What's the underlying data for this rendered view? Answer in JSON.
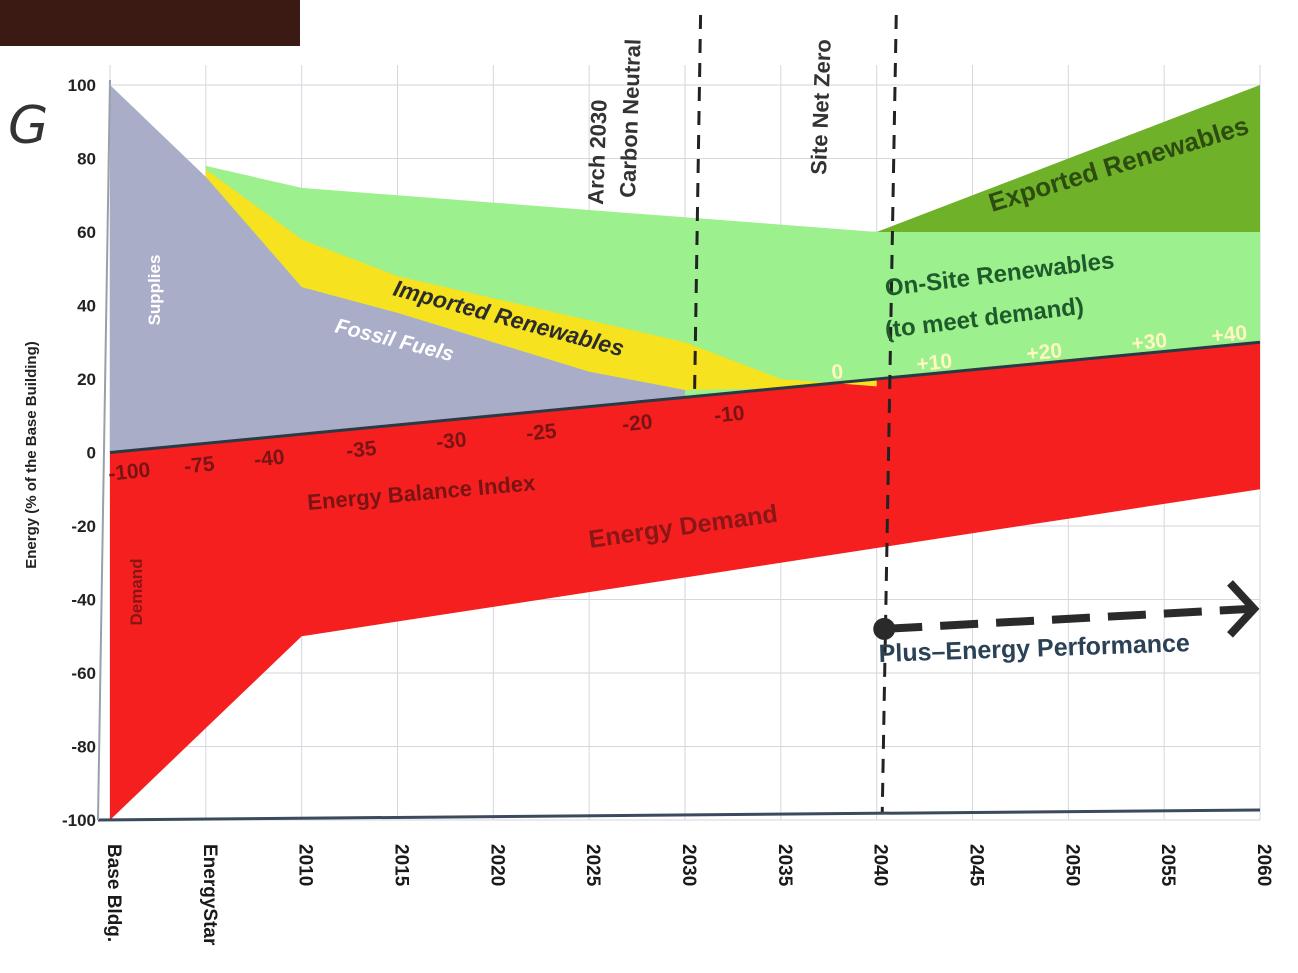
{
  "corner_glyph": "G",
  "colors": {
    "fossil": "#a9adc8",
    "imported": "#f6e21e",
    "onsite": "#9cf08e",
    "exported": "#6fb129",
    "demand": "#f51f1f",
    "balance_line": "#2a3a44",
    "grid": "#d6d6de"
  },
  "chart_data": {
    "type": "area",
    "ylabel": "Energy (% of the Base Building)",
    "ylim": [
      -100,
      100
    ],
    "yticks": [
      "100",
      "80",
      "60",
      "40",
      "20",
      "0",
      "-20",
      "-40",
      "-60",
      "-80",
      "-100"
    ],
    "x_categories": [
      "Base Bldg.",
      "EnergyStar",
      "2010",
      "2015",
      "2020",
      "2025",
      "2030",
      "2035",
      "2040",
      "2045",
      "2050",
      "2055",
      "2060"
    ],
    "series": [
      {
        "name": "Fossil Fuels",
        "values": [
          100,
          75,
          45,
          38,
          30,
          22,
          17,
          14,
          12,
          12,
          12,
          12,
          12
        ]
      },
      {
        "name": "Imported Renewables",
        "values": [
          null,
          77,
          58,
          48,
          42,
          36,
          30,
          20,
          18,
          null,
          null,
          null,
          null
        ]
      },
      {
        "name": "On-Site Renewables (to meet demand)",
        "values": [
          null,
          78,
          72,
          70,
          68,
          66,
          64,
          62,
          60,
          60,
          60,
          60,
          60
        ]
      },
      {
        "name": "Exported Renewables",
        "values": [
          null,
          null,
          null,
          null,
          null,
          null,
          null,
          null,
          60,
          70,
          80,
          90,
          100
        ]
      },
      {
        "name": "Energy Demand",
        "values": [
          -100,
          -75,
          -50,
          -46,
          -42,
          -38,
          -34,
          -30,
          -26,
          -22,
          -18,
          -14,
          -10
        ]
      }
    ],
    "energy_balance_index": {
      "label": "Energy Balance Index",
      "ticks": [
        "-100",
        "-75",
        "-40",
        "-35",
        "-30",
        "-25",
        "-20",
        "-10",
        "0",
        "+10",
        "+20",
        "+30",
        "+40"
      ]
    },
    "area_labels": {
      "supplies": "Supplies",
      "fossil": "Fossil Fuels",
      "imported": "Imported Renewables",
      "onsite_line1": "On-Site Renewables",
      "onsite_line2": "(to meet demand)",
      "exported": "Exported Renewables",
      "demand_vertical": "Demand",
      "energy_demand": "Energy Demand"
    },
    "markers": {
      "arch_line1": "Arch 2030",
      "arch_line2": "Carbon Neutral",
      "site_net_zero": "Site Net Zero",
      "plus_energy": "Plus–Energy Performance"
    }
  }
}
